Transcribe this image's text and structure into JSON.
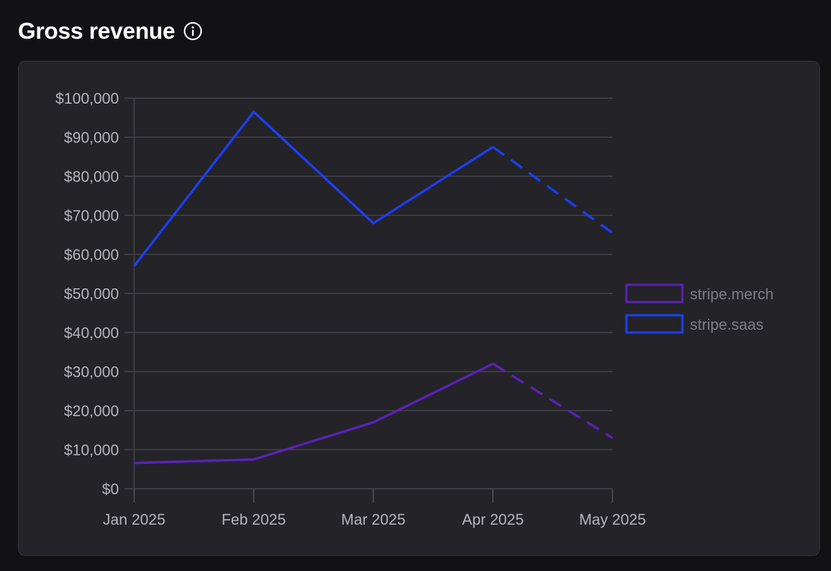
{
  "header": {
    "title": "Gross revenue",
    "info_icon": "info-circle-icon"
  },
  "chart_data": {
    "type": "line",
    "title": "Gross revenue",
    "categories": [
      "Jan 2025",
      "Feb 2025",
      "Mar 2025",
      "Apr 2025",
      "May 2025"
    ],
    "yticks": [
      "$0",
      "$10,000",
      "$20,000",
      "$30,000",
      "$40,000",
      "$50,000",
      "$60,000",
      "$70,000",
      "$80,000",
      "$90,000",
      "$100,000"
    ],
    "ylim": [
      0,
      100000
    ],
    "grid": true,
    "legend_position": "right",
    "projected_from_index": 3,
    "series": [
      {
        "name": "stripe.merch",
        "color": "#5b21b6",
        "values": [
          6600,
          7500,
          17000,
          32000,
          13000
        ]
      },
      {
        "name": "stripe.saas",
        "color": "#1d3fef",
        "values": [
          57000,
          96500,
          68000,
          87500,
          65500
        ]
      }
    ]
  }
}
